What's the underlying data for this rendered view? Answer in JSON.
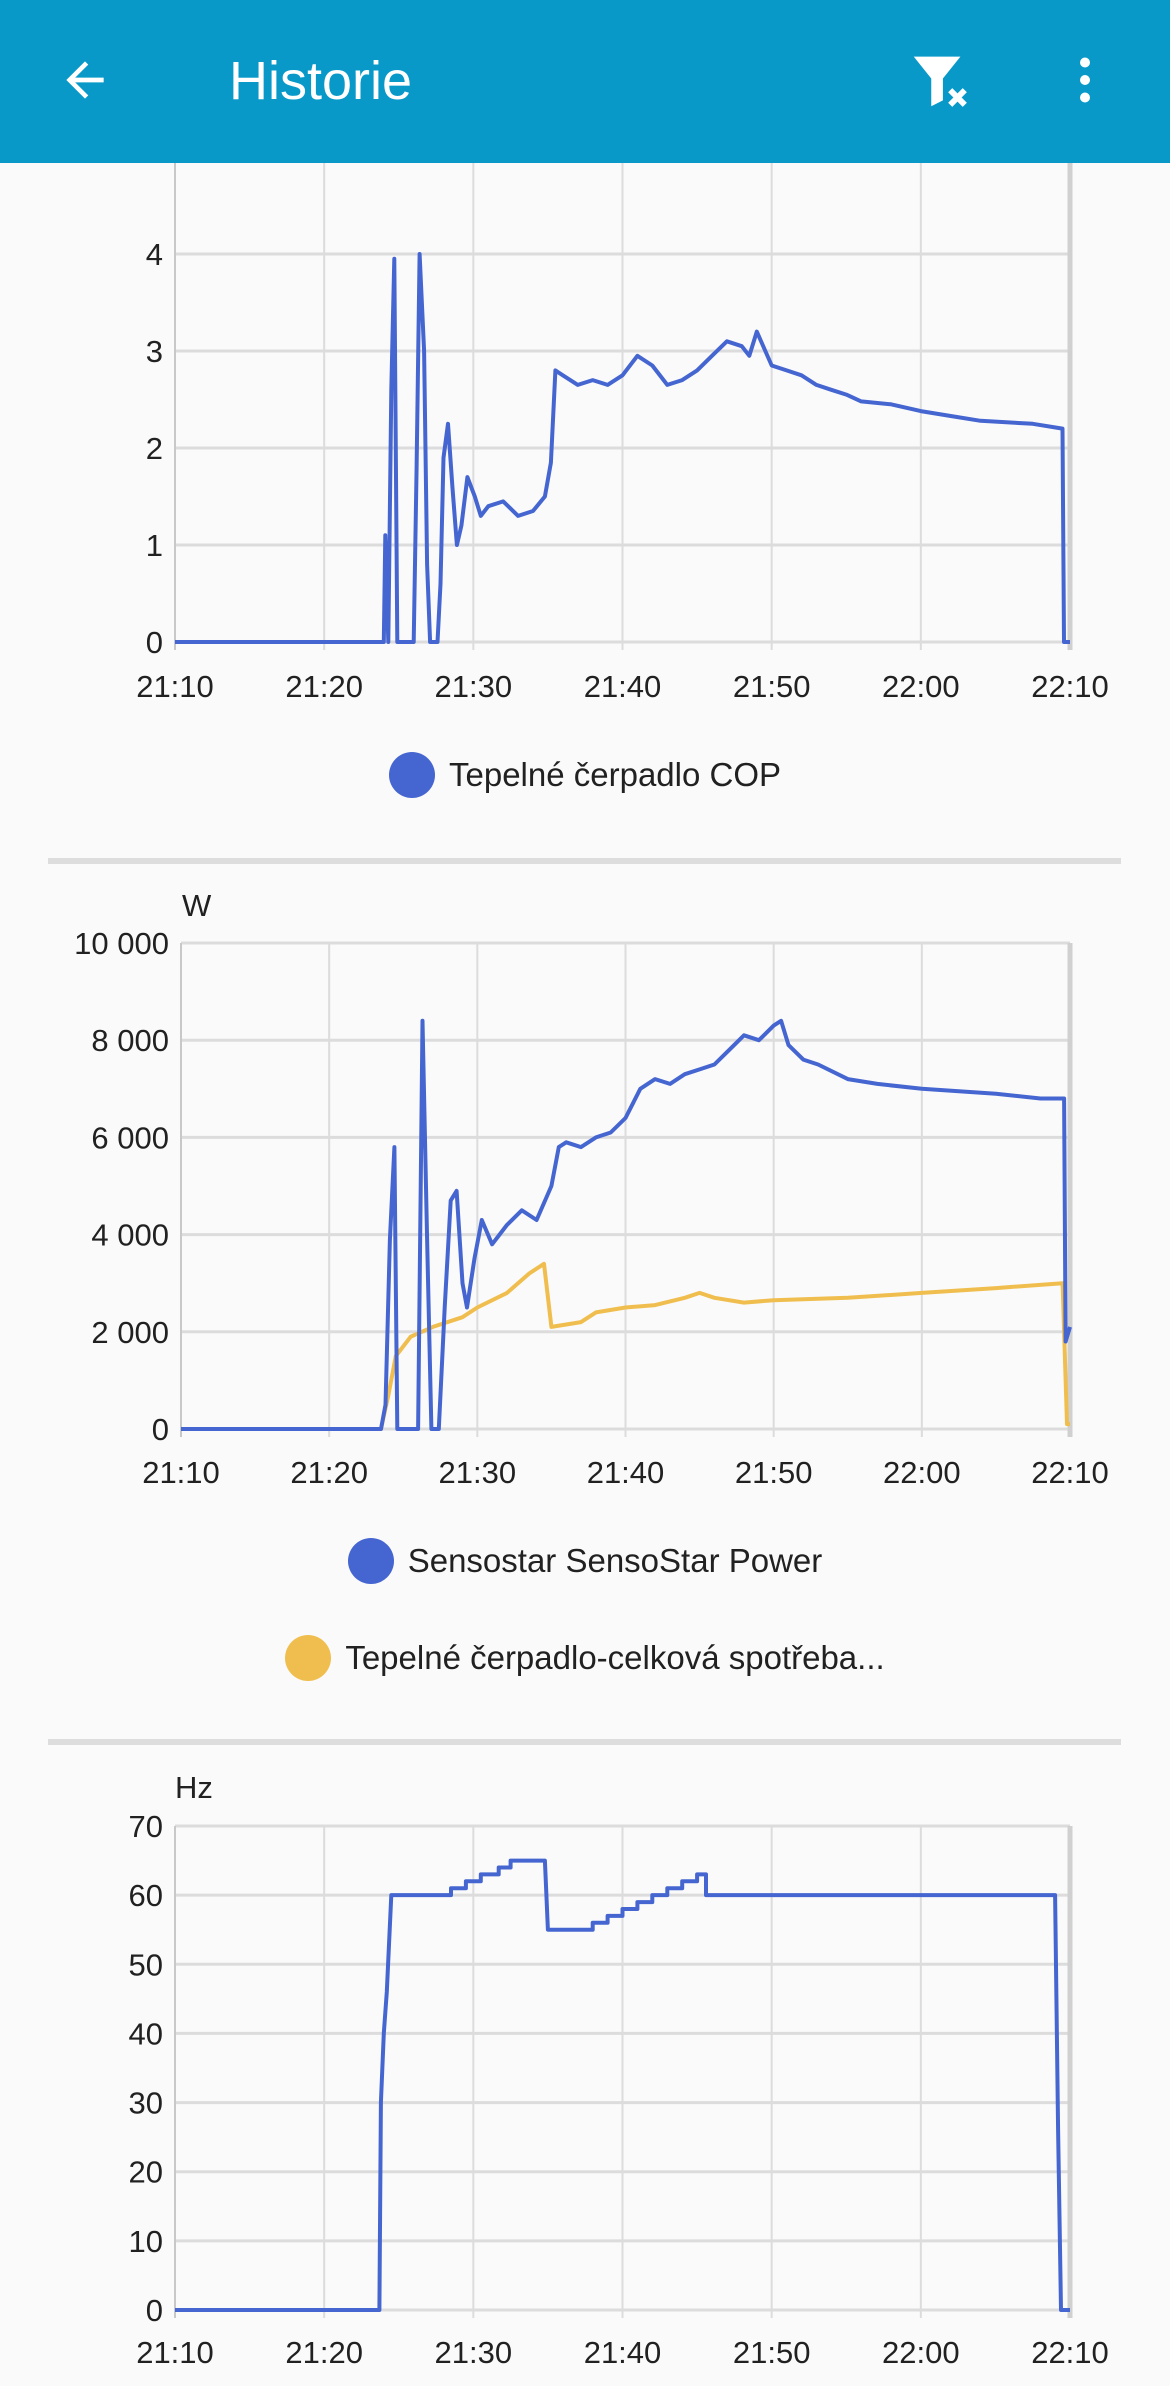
{
  "header": {
    "title": "Historie",
    "back_icon": "arrow-left-icon",
    "filter_icon": "filter-clear-icon",
    "menu_icon": "more-vertical-icon"
  },
  "colors": {
    "header": "#0899c9",
    "blue": "#4566d0",
    "orange": "#f0be4e",
    "grid": "#dcdcdc"
  },
  "chart_data": [
    {
      "type": "line",
      "title": "",
      "unit": "",
      "ylim": [
        0,
        5
      ],
      "yticks": [
        "0",
        "1",
        "2",
        "3",
        "4"
      ],
      "xticks": [
        "21:10",
        "21:20",
        "21:30",
        "21:40",
        "21:50",
        "22:00",
        "22:10"
      ],
      "x_unit": "minutes after 21:10",
      "xlim": [
        0,
        60
      ],
      "legend": [
        "Tepelné čerpadlo COP"
      ],
      "series": [
        {
          "name": "Tepelné čerpadlo COP",
          "color": "#4566d0",
          "points": [
            [
              0,
              0
            ],
            [
              14,
              0
            ],
            [
              14.1,
              1.1
            ],
            [
              14.3,
              0
            ],
            [
              14.5,
              2.6
            ],
            [
              14.7,
              3.95
            ],
            [
              14.9,
              0
            ],
            [
              16,
              0
            ],
            [
              16.2,
              1.8
            ],
            [
              16.4,
              4.0
            ],
            [
              16.7,
              3
            ],
            [
              16.9,
              0.8
            ],
            [
              17.1,
              0
            ],
            [
              17.6,
              0
            ],
            [
              17.8,
              0.6
            ],
            [
              18,
              1.9
            ],
            [
              18.3,
              2.25
            ],
            [
              18.6,
              1.6
            ],
            [
              18.9,
              1.0
            ],
            [
              19.2,
              1.2
            ],
            [
              19.6,
              1.7
            ],
            [
              20.1,
              1.5
            ],
            [
              20.5,
              1.3
            ],
            [
              21,
              1.4
            ],
            [
              22,
              1.45
            ],
            [
              23,
              1.3
            ],
            [
              24,
              1.35
            ],
            [
              24.8,
              1.5
            ],
            [
              25.2,
              1.85
            ],
            [
              25.5,
              2.8
            ],
            [
              26,
              2.75
            ],
            [
              27,
              2.65
            ],
            [
              28,
              2.7
            ],
            [
              29,
              2.65
            ],
            [
              30,
              2.75
            ],
            [
              31,
              2.95
            ],
            [
              32,
              2.85
            ],
            [
              33,
              2.65
            ],
            [
              34,
              2.7
            ],
            [
              35,
              2.8
            ],
            [
              36,
              2.95
            ],
            [
              37,
              3.1
            ],
            [
              38,
              3.05
            ],
            [
              38.5,
              2.95
            ],
            [
              39,
              3.2
            ],
            [
              40,
              2.85
            ],
            [
              41,
              2.8
            ],
            [
              42,
              2.75
            ],
            [
              43,
              2.65
            ],
            [
              44,
              2.6
            ],
            [
              45,
              2.55
            ],
            [
              46,
              2.48
            ],
            [
              48,
              2.45
            ],
            [
              50,
              2.38
            ],
            [
              52,
              2.33
            ],
            [
              54,
              2.28
            ],
            [
              57.5,
              2.25
            ],
            [
              59.5,
              2.2
            ],
            [
              59.6,
              0
            ],
            [
              60,
              0
            ]
          ]
        }
      ]
    },
    {
      "type": "line",
      "title": "",
      "unit": "W",
      "ylim": [
        0,
        10000
      ],
      "yticks": [
        "0",
        "2 000",
        "4 000",
        "6 000",
        "8 000",
        "10 000"
      ],
      "xticks": [
        "21:10",
        "21:20",
        "21:30",
        "21:40",
        "21:50",
        "22:00",
        "22:10"
      ],
      "x_unit": "minutes after 21:10",
      "xlim": [
        0,
        60
      ],
      "legend": [
        "Sensostar SensoStar Power",
        "Tepelné čerpadlo-celková spotřeba..."
      ],
      "series": [
        {
          "name": "Sensostar SensoStar Power",
          "color": "#4566d0",
          "points": [
            [
              0,
              0
            ],
            [
              13.5,
              0
            ],
            [
              13.8,
              500
            ],
            [
              14.1,
              3900
            ],
            [
              14.4,
              5800
            ],
            [
              14.6,
              0
            ],
            [
              16,
              0
            ],
            [
              16.3,
              8400
            ],
            [
              16.6,
              4000
            ],
            [
              16.9,
              0
            ],
            [
              17.4,
              0
            ],
            [
              17.8,
              2500
            ],
            [
              18.2,
              4700
            ],
            [
              18.6,
              4900
            ],
            [
              19,
              3000
            ],
            [
              19.3,
              2500
            ],
            [
              19.8,
              3500
            ],
            [
              20.3,
              4300
            ],
            [
              21,
              3800
            ],
            [
              22,
              4200
            ],
            [
              23,
              4500
            ],
            [
              24,
              4300
            ],
            [
              25,
              5000
            ],
            [
              25.5,
              5800
            ],
            [
              26,
              5900
            ],
            [
              27,
              5800
            ],
            [
              28,
              6000
            ],
            [
              29,
              6100
            ],
            [
              30,
              6400
            ],
            [
              31,
              7000
            ],
            [
              32,
              7200
            ],
            [
              33,
              7100
            ],
            [
              34,
              7300
            ],
            [
              35,
              7400
            ],
            [
              36,
              7500
            ],
            [
              37,
              7800
            ],
            [
              38,
              8100
            ],
            [
              39,
              8000
            ],
            [
              40,
              8300
            ],
            [
              40.5,
              8400
            ],
            [
              41,
              7900
            ],
            [
              42,
              7600
            ],
            [
              43,
              7500
            ],
            [
              45,
              7200
            ],
            [
              47,
              7100
            ],
            [
              50,
              7000
            ],
            [
              55,
              6900
            ],
            [
              58,
              6800
            ],
            [
              59.6,
              6800
            ],
            [
              59.7,
              1800
            ],
            [
              60,
              2100
            ]
          ]
        },
        {
          "name": "Tepelné čerpadlo-celková spotřeba...",
          "color": "#f0be4e",
          "points": [
            [
              0,
              0
            ],
            [
              13.5,
              0
            ],
            [
              14,
              700
            ],
            [
              14.5,
              1500
            ],
            [
              15.5,
              1900
            ],
            [
              17,
              2100
            ],
            [
              19,
              2300
            ],
            [
              20,
              2500
            ],
            [
              22,
              2800
            ],
            [
              23.5,
              3200
            ],
            [
              24.5,
              3400
            ],
            [
              25,
              2100
            ],
            [
              27,
              2200
            ],
            [
              28,
              2400
            ],
            [
              30,
              2500
            ],
            [
              32,
              2550
            ],
            [
              34,
              2700
            ],
            [
              35,
              2800
            ],
            [
              36,
              2700
            ],
            [
              38,
              2600
            ],
            [
              40,
              2650
            ],
            [
              45,
              2700
            ],
            [
              50,
              2800
            ],
            [
              55,
              2900
            ],
            [
              59.5,
              3000
            ],
            [
              59.8,
              100
            ],
            [
              60,
              100
            ]
          ]
        }
      ]
    },
    {
      "type": "line",
      "title": "",
      "unit": "Hz",
      "ylim": [
        0,
        70
      ],
      "yticks": [
        "0",
        "10",
        "20",
        "30",
        "40",
        "50",
        "60",
        "70"
      ],
      "xticks": [
        "21:10",
        "21:20",
        "21:30",
        "21:40",
        "21:50",
        "22:00",
        "22:10"
      ],
      "x_unit": "minutes after 21:10",
      "xlim": [
        0,
        60
      ],
      "legend": [],
      "series": [
        {
          "name": "Hz",
          "color": "#4566d0",
          "points": [
            [
              0,
              0
            ],
            [
              13.7,
              0
            ],
            [
              13.8,
              30
            ],
            [
              14,
              40
            ],
            [
              14.2,
              46
            ],
            [
              14.5,
              60
            ],
            [
              18.5,
              60
            ],
            [
              18.5,
              61
            ],
            [
              19.5,
              61
            ],
            [
              19.5,
              62
            ],
            [
              20.5,
              62
            ],
            [
              20.5,
              63
            ],
            [
              21.7,
              63
            ],
            [
              21.7,
              64
            ],
            [
              22.5,
              64
            ],
            [
              22.5,
              65
            ],
            [
              24.8,
              65
            ],
            [
              25,
              55
            ],
            [
              28,
              55
            ],
            [
              28,
              56
            ],
            [
              29,
              56
            ],
            [
              29,
              57
            ],
            [
              30,
              57
            ],
            [
              30,
              58
            ],
            [
              31,
              58
            ],
            [
              31,
              59
            ],
            [
              32,
              59
            ],
            [
              32,
              60
            ],
            [
              33,
              60
            ],
            [
              33,
              61
            ],
            [
              34,
              61
            ],
            [
              34,
              62
            ],
            [
              35,
              62
            ],
            [
              35,
              63
            ],
            [
              35.6,
              63
            ],
            [
              35.6,
              60
            ],
            [
              59,
              60
            ],
            [
              59.2,
              26
            ],
            [
              59.4,
              0
            ],
            [
              60,
              0
            ]
          ]
        }
      ]
    }
  ]
}
